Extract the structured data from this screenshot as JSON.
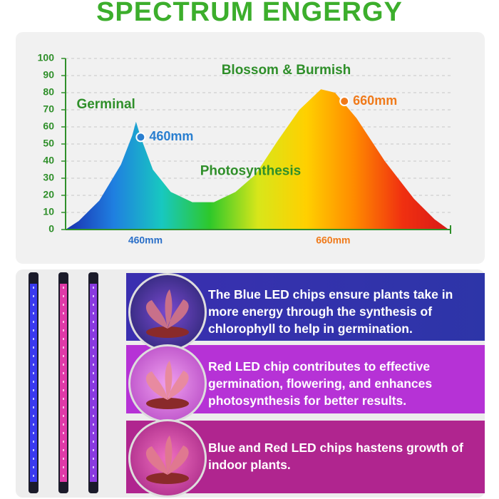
{
  "title": "SPECTRUM ENGERGY",
  "chart_data": {
    "type": "area",
    "x": [
      375,
      389,
      411,
      434,
      446,
      450,
      455,
      468,
      487,
      510,
      533,
      556,
      577,
      601,
      624,
      647,
      662,
      685,
      715,
      746,
      768,
      783
    ],
    "values": [
      0,
      5,
      17,
      38,
      55,
      63,
      54,
      35,
      22,
      16,
      16,
      22,
      32,
      52,
      70,
      82,
      80,
      65,
      40,
      18,
      6,
      0
    ],
    "colors": [
      "#1a2fb0",
      "#1f7fe0",
      "#18c8c0",
      "#2ec82a",
      "#d8e61a",
      "#ffd000",
      "#ff8a00",
      "#f03010",
      "#d81818"
    ],
    "xlim": [
      375,
      785
    ],
    "ylim": [
      0,
      100
    ],
    "xticks": [
      {
        "value": 460,
        "label": "460mm"
      },
      {
        "value": 660,
        "label": "660mm"
      }
    ],
    "yticks": [
      0,
      10,
      20,
      30,
      40,
      50,
      60,
      70,
      80,
      90,
      100
    ],
    "grid": true,
    "points": [
      {
        "x": 455,
        "y": 54,
        "label": "460mm",
        "color": "#2a7fd0"
      },
      {
        "x": 672,
        "y": 75,
        "label": "660mm",
        "color": "#f07a1a"
      }
    ],
    "annotations": [
      {
        "text": "Germinal",
        "x": 418,
        "y": 73
      },
      {
        "text": "Blossom & Burmish",
        "x": 610,
        "y": 93
      },
      {
        "text": "Photosynthesis",
        "x": 572,
        "y": 34
      }
    ]
  },
  "panels": [
    {
      "text": "The Blue LED chips ensure plants take in more energy through the synthesis of chlorophyll to help in germination."
    },
    {
      "text": "Red LED chip contributes to effective germination, flowering, and enhances photosynthesis for better results."
    },
    {
      "text": "Blue and Red LED chips hastens growth of indoor plants."
    }
  ]
}
